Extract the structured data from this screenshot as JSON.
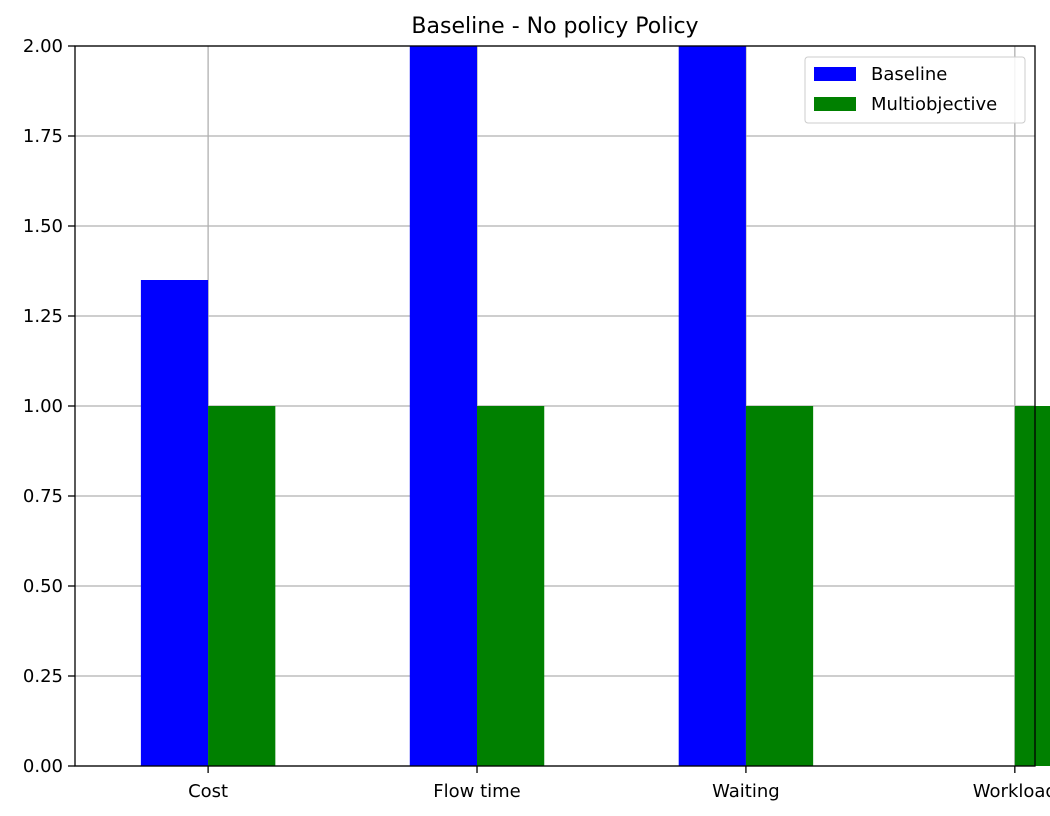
{
  "chart_data": {
    "type": "bar",
    "title": "Baseline - No policy Policy",
    "xlabel": "",
    "ylabel": "",
    "categories": [
      "Cost",
      "Flow time",
      "Waiting",
      "Workload"
    ],
    "series": [
      {
        "name": "Baseline",
        "color": "#0000ff",
        "values": [
          1.35,
          2.0,
          2.0,
          0.0
        ]
      },
      {
        "name": "Multiobjective",
        "color": "#008000",
        "values": [
          1.0,
          1.0,
          1.0,
          1.0
        ]
      }
    ],
    "ylim": [
      0,
      2.0
    ],
    "yticks": [
      "0.00",
      "0.25",
      "0.50",
      "0.75",
      "1.00",
      "1.25",
      "1.50",
      "1.75",
      "2.00"
    ],
    "grid": true,
    "legend_position": "top-right"
  }
}
